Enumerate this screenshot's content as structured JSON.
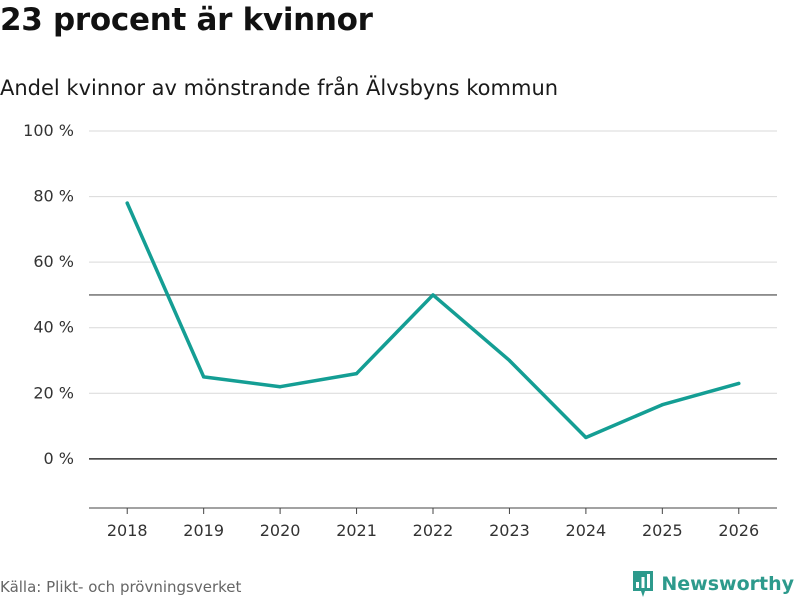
{
  "title": "23 procent är kvinnor",
  "subtitle": "Andel kvinnor av mönstrande från Älvsbyns kommun",
  "source": "Källa: Plikt- och prövningsverket",
  "brand": {
    "name": "Newsworthy",
    "icon": "bar-chart-logo-icon"
  },
  "colors": {
    "line": "#149e94",
    "grid": "#d9d9d9",
    "reference": "#666666",
    "zero": "#333333",
    "brand": "#2d9a8c"
  },
  "chart_data": {
    "type": "line",
    "title": "23 procent är kvinnor",
    "subtitle": "Andel kvinnor av mönstrande från Älvsbyns kommun",
    "xlabel": "",
    "ylabel": "",
    "x": [
      "2018",
      "2019",
      "2020",
      "2021",
      "2022",
      "2023",
      "2024",
      "2025",
      "2026"
    ],
    "series": [
      {
        "values": [
          78,
          25,
          22,
          26,
          50,
          30,
          6.5,
          16.5,
          23
        ]
      }
    ],
    "ylim": [
      -15,
      100
    ],
    "yticks": [
      0,
      20,
      40,
      60,
      80,
      100
    ],
    "ytick_labels": [
      "0 %",
      "20 %",
      "40 %",
      "60 %",
      "80 %",
      "100 %"
    ],
    "reference_line": 50,
    "grid": true,
    "legend": "none"
  }
}
